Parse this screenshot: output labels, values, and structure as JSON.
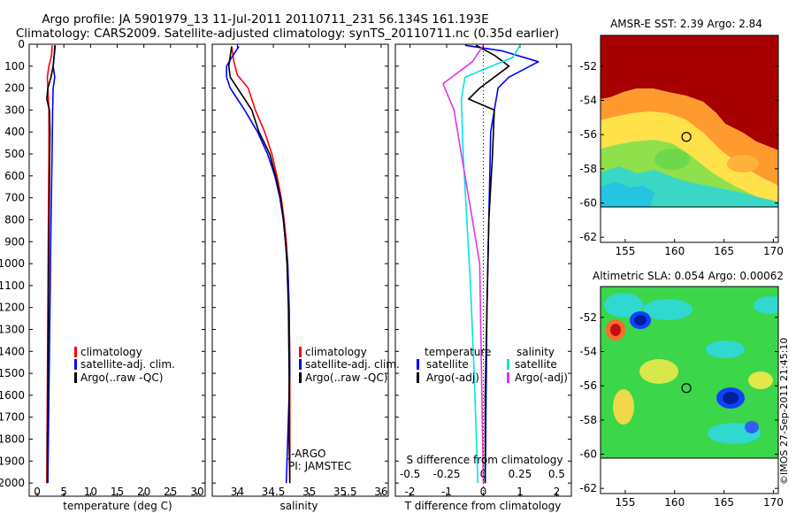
{
  "header": {
    "line1": "Argo profile: JA 5901979_13 11-Jul-2011 20110711_231 56.134S 161.193E",
    "line2": "Climatology: CARS2009. Satellite-adjusted climatology: synTS_20110711.nc (0.35d earlier)"
  },
  "depth_axis": {
    "ticks": [
      0,
      100,
      200,
      300,
      400,
      500,
      600,
      700,
      800,
      900,
      1000,
      1100,
      1200,
      1300,
      1400,
      1500,
      1600,
      1700,
      1800,
      1900,
      2000
    ],
    "ylim": [
      0,
      2060
    ]
  },
  "colors": {
    "climatology": "#ff0000",
    "satellite": "#0000ff",
    "argo": "#000000",
    "salinity_satellite": "#00e5e5",
    "salinity_argo": "#e633e6"
  },
  "chart_data": [
    {
      "type": "line",
      "name": "temperature-profile",
      "xlabel": "temperature (deg C)",
      "xlim": [
        -1.5,
        31.5
      ],
      "xticks": [
        0,
        5,
        10,
        15,
        20,
        25,
        30
      ],
      "legend": {
        "placement": "bottom-center",
        "entries": [
          "climatology",
          "satellite-adj. clim.",
          "Argo(..raw -QC)"
        ]
      },
      "series": [
        {
          "name": "climatology",
          "color": "#ff0000",
          "points": [
            [
              2.8,
              5
            ],
            [
              2.7,
              50
            ],
            [
              2.2,
              100
            ],
            [
              1.9,
              150
            ],
            [
              2.0,
              200
            ],
            [
              2.2,
              300
            ],
            [
              2.2,
              500
            ],
            [
              2.1,
              800
            ],
            [
              2.0,
              1200
            ],
            [
              1.9,
              1600
            ],
            [
              1.8,
              2000
            ]
          ]
        },
        {
          "name": "satellite-adj. clim.",
          "color": "#0000ff",
          "points": [
            [
              3.3,
              5
            ],
            [
              3.2,
              50
            ],
            [
              3.0,
              100
            ],
            [
              3.3,
              150
            ],
            [
              3.0,
              200
            ],
            [
              2.9,
              300
            ],
            [
              2.8,
              500
            ],
            [
              2.6,
              800
            ],
            [
              2.4,
              1200
            ],
            [
              2.2,
              1600
            ],
            [
              2.0,
              2000
            ]
          ]
        },
        {
          "name": "Argo(..raw -QC)",
          "color": "#000000",
          "points": [
            [
              3.4,
              5
            ],
            [
              3.2,
              50
            ],
            [
              3.0,
              100
            ],
            [
              2.6,
              150
            ],
            [
              2.0,
              200
            ],
            [
              1.8,
              250
            ],
            [
              2.3,
              300
            ],
            [
              2.4,
              400
            ],
            [
              2.3,
              600
            ],
            [
              2.2,
              900
            ],
            [
              2.1,
              1200
            ],
            [
              2.0,
              1600
            ],
            [
              1.9,
              1800
            ],
            [
              1.9,
              2000
            ]
          ]
        }
      ]
    },
    {
      "type": "line",
      "name": "salinity-profile",
      "xlabel": "salinity",
      "xlim": [
        33.65,
        36.1
      ],
      "xticks": [
        34,
        34.5,
        35,
        35.5,
        36
      ],
      "legend": {
        "placement": "bottom-right",
        "entries": [
          "climatology",
          "satellite-adj. clim.",
          "Argo(..raw -QC)"
        ]
      },
      "annotations": [
        "J-ARGO",
        "PI: JAMSTEC"
      ],
      "series": [
        {
          "name": "climatology",
          "color": "#ff0000",
          "points": [
            [
              33.92,
              10
            ],
            [
              33.95,
              80
            ],
            [
              34.0,
              140
            ],
            [
              34.15,
              200
            ],
            [
              34.25,
              300
            ],
            [
              34.38,
              400
            ],
            [
              34.48,
              500
            ],
            [
              34.55,
              600
            ],
            [
              34.61,
              700
            ],
            [
              34.65,
              800
            ],
            [
              34.68,
              900
            ],
            [
              34.7,
              1000
            ],
            [
              34.72,
              1200
            ],
            [
              34.73,
              1500
            ],
            [
              34.73,
              2000
            ]
          ]
        },
        {
          "name": "satellite-adj. clim.",
          "color": "#0000ff",
          "points": [
            [
              34.02,
              10
            ],
            [
              33.92,
              60
            ],
            [
              33.85,
              100
            ],
            [
              33.85,
              150
            ],
            [
              33.9,
              200
            ],
            [
              34.0,
              250
            ],
            [
              34.1,
              300
            ],
            [
              34.28,
              400
            ],
            [
              34.42,
              500
            ],
            [
              34.52,
              600
            ],
            [
              34.59,
              700
            ],
            [
              34.64,
              800
            ],
            [
              34.67,
              900
            ],
            [
              34.7,
              1000
            ],
            [
              34.72,
              1200
            ],
            [
              34.73,
              1500
            ],
            [
              34.7,
              1800
            ],
            [
              34.68,
              2000
            ]
          ]
        },
        {
          "name": "Argo(..raw -QC)",
          "color": "#000000",
          "points": [
            [
              33.92,
              10
            ],
            [
              33.88,
              100
            ],
            [
              33.9,
              150
            ],
            [
              34.0,
              200
            ],
            [
              34.1,
              250
            ],
            [
              34.2,
              300
            ],
            [
              34.3,
              400
            ],
            [
              34.45,
              500
            ],
            [
              34.53,
              600
            ],
            [
              34.6,
              700
            ],
            [
              34.64,
              800
            ],
            [
              34.67,
              900
            ],
            [
              34.69,
              1000
            ],
            [
              34.71,
              1200
            ],
            [
              34.72,
              1500
            ],
            [
              34.72,
              1800
            ],
            [
              34.73,
              2000
            ]
          ]
        }
      ]
    },
    {
      "type": "line",
      "name": "difference-profile",
      "xlabel": "T difference from climatology",
      "xlabel2": "S difference from climatology",
      "xlim": [
        -2.4,
        2.4
      ],
      "xticks": [
        -2,
        -1,
        0,
        1,
        2
      ],
      "xticks2": [
        {
          "label": "-0.5",
          "at": -2
        },
        {
          "label": "-0.25",
          "at": -1
        },
        {
          "label": "0",
          "at": 0
        },
        {
          "label": "0.25",
          "at": 1
        },
        {
          "label": "0.5",
          "at": 2
        }
      ],
      "legend": {
        "temperature_title": "temperature",
        "salinity_title": "salinity",
        "entries": [
          "satellite",
          "Argo(-adj)",
          "satellite",
          "Argo(-adj)"
        ]
      },
      "series": [
        {
          "name": "temperature satellite",
          "color": "#0000ff",
          "points": [
            [
              -0.5,
              5
            ],
            [
              0.5,
              30
            ],
            [
              1.5,
              80
            ],
            [
              0.7,
              150
            ],
            [
              0.4,
              200
            ],
            [
              0.2,
              400
            ],
            [
              0.15,
              800
            ],
            [
              0.1,
              1200
            ],
            [
              0.05,
              2000
            ]
          ]
        },
        {
          "name": "temperature Argo(-adj)",
          "color": "#000000",
          "points": [
            [
              -0.2,
              5
            ],
            [
              0.3,
              50
            ],
            [
              0.7,
              100
            ],
            [
              0.3,
              150
            ],
            [
              -0.1,
              200
            ],
            [
              -0.4,
              250
            ],
            [
              0.3,
              300
            ],
            [
              0.25,
              500
            ],
            [
              0.15,
              800
            ],
            [
              0.1,
              1200
            ],
            [
              0.05,
              1600
            ],
            [
              0.05,
              2000
            ]
          ]
        },
        {
          "name": "salinity satellite",
          "color": "#00e5e5",
          "points": [
            [
              1.0,
              5
            ],
            [
              0.8,
              60
            ],
            [
              -0.5,
              150
            ],
            [
              -0.6,
              250
            ],
            [
              -0.55,
              500
            ],
            [
              -0.45,
              800
            ],
            [
              -0.35,
              1100
            ],
            [
              -0.25,
              1500
            ],
            [
              -0.15,
              2000
            ]
          ]
        },
        {
          "name": "salinity Argo(-adj)",
          "color": "#e633e6",
          "points": [
            [
              0,
              5
            ],
            [
              -0.3,
              80
            ],
            [
              -1.1,
              180
            ],
            [
              -0.8,
              300
            ],
            [
              -0.6,
              500
            ],
            [
              -0.3,
              800
            ],
            [
              -0.1,
              1000
            ],
            [
              -0.05,
              1500
            ],
            [
              0,
              2000
            ]
          ]
        }
      ]
    },
    {
      "type": "heatmap",
      "name": "sst-map",
      "title": "AMSR-E SST: 2.39 Argo: 2.84",
      "xlim": [
        152.5,
        170.5
      ],
      "ylim": [
        -62.3,
        -50.2
      ],
      "xticks": [
        155,
        160,
        165,
        170
      ],
      "yticks": [
        -52,
        -54,
        -56,
        -58,
        -60,
        -62
      ],
      "marker": {
        "lon": 161.193,
        "lat": -56.134
      }
    },
    {
      "type": "heatmap",
      "name": "sla-map",
      "title": "Altimetric SLA: 0.054 Argo: 0.00062",
      "xlim": [
        152.5,
        170.5
      ],
      "ylim": [
        -62.3,
        -50.2
      ],
      "xticks": [
        155,
        160,
        165,
        170
      ],
      "yticks": [
        -52,
        -54,
        -56,
        -58,
        -60,
        -62
      ],
      "marker": {
        "lon": 161.193,
        "lat": -56.134
      }
    }
  ],
  "credit": "©IMOS 27-Sep-2011 21:45:10"
}
